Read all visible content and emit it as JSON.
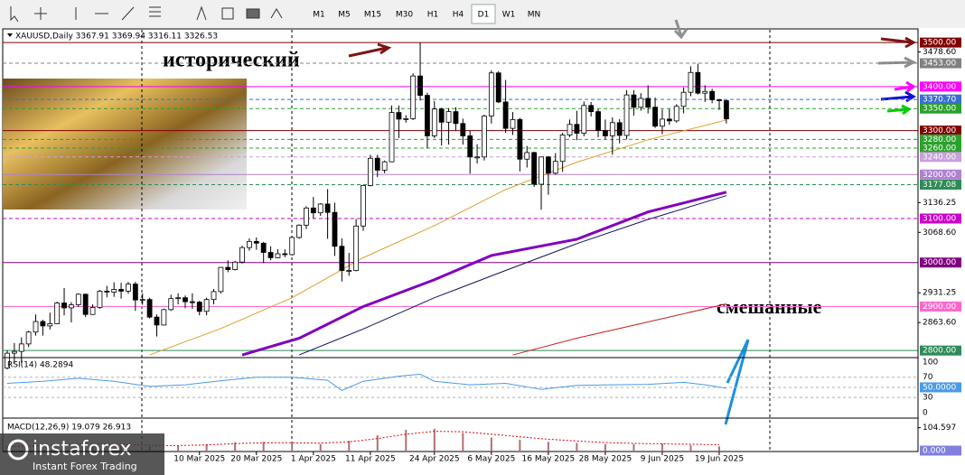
{
  "toolbar": {
    "timeframes": [
      "M1",
      "M5",
      "M15",
      "M30",
      "H1",
      "H4",
      "D1",
      "W1",
      "MN"
    ],
    "active_index": 6
  },
  "brand": {
    "name": "instaforex",
    "tagline": "Instant Forex Trading"
  },
  "chart_data": [
    {
      "type": "candlestick",
      "title": "XAUUSD,Daily  3367.91 3369.94 3316.11 3326.53",
      "categories": [
        null,
        null,
        null,
        null,
        null,
        null,
        null,
        null,
        null,
        null,
        null,
        null,
        null,
        null,
        null,
        null,
        null,
        null,
        null,
        null,
        null,
        null,
        null,
        null,
        null,
        null,
        null,
        "10 Mar 2025",
        null,
        null,
        null,
        null,
        null,
        null,
        null,
        "20 Mar 2025",
        null,
        null,
        null,
        null,
        null,
        null,
        null,
        "1 Apr 2025",
        null,
        null,
        null,
        null,
        null,
        null,
        null,
        "11 Apr 2025",
        null,
        null,
        null,
        null,
        null,
        null,
        null,
        null,
        "24 Apr 2025",
        null,
        null,
        null,
        null,
        null,
        null,
        null,
        "6 May 2025",
        null,
        null,
        null,
        null,
        null,
        null,
        null,
        "16 May 2025",
        null,
        null,
        null,
        null,
        null,
        null,
        null,
        "28 May 2025",
        null,
        null,
        null,
        null,
        null,
        null,
        null,
        "9 Jun 2025",
        null,
        null,
        null,
        null,
        null,
        null,
        null,
        "19 Jun 2025",
        null
      ],
      "ohlc": [
        [
          2760,
          2800,
          2757,
          2794
        ],
        [
          2794,
          2817,
          2772,
          2798
        ],
        [
          2798,
          2830,
          2772,
          2815
        ],
        [
          2815,
          2845,
          2808,
          2842
        ],
        [
          2842,
          2882,
          2834,
          2866
        ],
        [
          2866,
          2870,
          2834,
          2856
        ],
        [
          2856,
          2886,
          2848,
          2861
        ],
        [
          2861,
          2911,
          2860,
          2908
        ],
        [
          2908,
          2942,
          2880,
          2897
        ],
        [
          2897,
          2910,
          2864,
          2904
        ],
        [
          2904,
          2930,
          2899,
          2928
        ],
        [
          2928,
          2929,
          2876,
          2882
        ],
        [
          2882,
          2905,
          2881,
          2898
        ],
        [
          2898,
          2938,
          2895,
          2935
        ],
        [
          2935,
          2947,
          2921,
          2933
        ],
        [
          2933,
          2955,
          2922,
          2939
        ],
        [
          2939,
          2954,
          2918,
          2935
        ],
        [
          2935,
          2956,
          2929,
          2951
        ],
        [
          2951,
          2956,
          2890,
          2915
        ],
        [
          2915,
          2930,
          2904,
          2916
        ],
        [
          2916,
          2920,
          2873,
          2876
        ],
        [
          2876,
          2882,
          2832,
          2858
        ],
        [
          2858,
          2895,
          2857,
          2893
        ],
        [
          2893,
          2927,
          2890,
          2918
        ],
        [
          2918,
          2930,
          2905,
          2920
        ],
        [
          2920,
          2925,
          2896,
          2911
        ],
        [
          2911,
          2930,
          2895,
          2910
        ],
        [
          2910,
          2913,
          2880,
          2889
        ],
        [
          2889,
          2920,
          2880,
          2916
        ],
        [
          2916,
          2940,
          2905,
          2934
        ],
        [
          2934,
          2990,
          2930,
          2989
        ],
        [
          2989,
          3005,
          2978,
          2984
        ],
        [
          2984,
          3004,
          2982,
          3001
        ],
        [
          3001,
          3038,
          2998,
          3034
        ],
        [
          3034,
          3055,
          3027,
          3048
        ],
        [
          3048,
          3057,
          3029,
          3044
        ],
        [
          3044,
          3047,
          2999,
          3023
        ],
        [
          3023,
          3037,
          3005,
          3011
        ],
        [
          3011,
          3030,
          3010,
          3020
        ],
        [
          3020,
          3030,
          3012,
          3018
        ],
        [
          3018,
          3060,
          3016,
          3057
        ],
        [
          3057,
          3087,
          3054,
          3085
        ],
        [
          3085,
          3128,
          3076,
          3124
        ],
        [
          3124,
          3149,
          3100,
          3113
        ],
        [
          3113,
          3135,
          3106,
          3133
        ],
        [
          3133,
          3167,
          3054,
          3114
        ],
        [
          3114,
          3136,
          3015,
          3037
        ],
        [
          3037,
          3055,
          2957,
          2982
        ],
        [
          2982,
          3022,
          2970,
          2982
        ],
        [
          2982,
          3099,
          2980,
          3083
        ],
        [
          3083,
          3175,
          3072,
          3175
        ],
        [
          3175,
          3245,
          3173,
          3237
        ],
        [
          3237,
          3245,
          3194,
          3210
        ],
        [
          3210,
          3232,
          3203,
          3229
        ],
        [
          3229,
          3357,
          3228,
          3341
        ],
        [
          3341,
          3357,
          3283,
          3326
        ],
        [
          3326,
          3335,
          3318,
          3327
        ],
        [
          3327,
          3430,
          3324,
          3424
        ],
        [
          3424,
          3500,
          3368,
          3380
        ],
        [
          3380,
          3386,
          3260,
          3288
        ],
        [
          3288,
          3367,
          3283,
          3349
        ],
        [
          3349,
          3352,
          3266,
          3319
        ],
        [
          3319,
          3351,
          3268,
          3343
        ],
        [
          3343,
          3353,
          3300,
          3316
        ],
        [
          3316,
          3327,
          3268,
          3288
        ],
        [
          3288,
          3300,
          3202,
          3240
        ],
        [
          3240,
          3269,
          3225,
          3240
        ],
        [
          3240,
          3336,
          3232,
          3333
        ],
        [
          3333,
          3437,
          3316,
          3431
        ],
        [
          3431,
          3435,
          3363,
          3365
        ],
        [
          3365,
          3415,
          3295,
          3305
        ],
        [
          3305,
          3342,
          3290,
          3325
        ],
        [
          3325,
          3329,
          3207,
          3235
        ],
        [
          3235,
          3265,
          3216,
          3250
        ],
        [
          3250,
          3252,
          3172,
          3178
        ],
        [
          3178,
          3240,
          3120,
          3240
        ],
        [
          3240,
          3242,
          3154,
          3203
        ],
        [
          3203,
          3249,
          3200,
          3230
        ],
        [
          3230,
          3295,
          3206,
          3290
        ],
        [
          3290,
          3325,
          3285,
          3314
        ],
        [
          3314,
          3345,
          3278,
          3294
        ],
        [
          3294,
          3366,
          3287,
          3357
        ],
        [
          3357,
          3365,
          3332,
          3343
        ],
        [
          3343,
          3349,
          3285,
          3300
        ],
        [
          3300,
          3325,
          3280,
          3288
        ],
        [
          3288,
          3330,
          3245,
          3318
        ],
        [
          3318,
          3326,
          3271,
          3289
        ],
        [
          3289,
          3392,
          3280,
          3381
        ],
        [
          3381,
          3392,
          3334,
          3353
        ],
        [
          3353,
          3385,
          3345,
          3373
        ],
        [
          3373,
          3403,
          3339,
          3353
        ],
        [
          3353,
          3375,
          3306,
          3310
        ],
        [
          3310,
          3348,
          3292,
          3326
        ],
        [
          3326,
          3349,
          3313,
          3322
        ],
        [
          3322,
          3360,
          3318,
          3355
        ],
        [
          3355,
          3398,
          3339,
          3387
        ],
        [
          3387,
          3446,
          3378,
          3432
        ],
        [
          3432,
          3452,
          3382,
          3385
        ],
        [
          3385,
          3403,
          3365,
          3389
        ],
        [
          3389,
          3395,
          3362,
          3370
        ],
        [
          3370,
          3371,
          3347,
          3368
        ],
        [
          3367.91,
          3369.94,
          3316.11,
          3326.53
        ]
      ],
      "bull_color": "#ffffff",
      "bear_color": "#000000",
      "ylim": [
        2786,
        3529
      ],
      "yticks": [
        {
          "value": 3478.6,
          "label": "3478.60"
        },
        3136.25,
        {
          "value": 3068.6,
          "label": "3068.60"
        },
        2931.25,
        {
          "value": 2863.6,
          "label": "2863.60"
        }
      ],
      "levels": [
        {
          "value": 3500,
          "label": "3500.00",
          "color": "#800000",
          "dash": false
        },
        {
          "value": 3453,
          "label": "3453.00",
          "color": "#808080",
          "dash": true
        },
        {
          "value": 3400,
          "label": "3400.00",
          "color": "#ff00ff",
          "dash": false
        },
        {
          "value": 3370.7,
          "label": "3370.70",
          "color": "#3a6ed0",
          "dash": true
        },
        {
          "value": 3350,
          "label": "3350.00",
          "color": "#2ca02c",
          "dash": true
        },
        {
          "value": 3300,
          "label": "3300.00",
          "color": "#800000",
          "dash": false
        },
        {
          "value": 3280,
          "label": "3280.00",
          "color": "#2ca02c",
          "dash": true
        },
        {
          "value": 3260,
          "label": "3260.00",
          "color": "#2ca02c",
          "dash": true
        },
        {
          "value": 3240,
          "label": "3240.00",
          "color": "#c8a0d8",
          "dash": true
        },
        {
          "value": 3200,
          "label": "3200.00",
          "color": "#b080d0",
          "dash": false
        },
        {
          "value": 3177.08,
          "label": "3177.08",
          "color": "#2e8b57",
          "dash": true
        },
        {
          "value": 3100,
          "label": "3100.00",
          "color": "#cc00cc",
          "dash": true
        },
        {
          "value": 3000,
          "label": "3000.00",
          "color": "#800080",
          "dash": false
        },
        {
          "value": 2900,
          "label": "2900.00",
          "color": "#ff66cc",
          "dash": false
        },
        {
          "value": 2800,
          "label": "2800.00",
          "color": "#2e8b57",
          "dash": false
        }
      ],
      "ma": [
        {
          "color": "#e0a030",
          "width": 1,
          "x": [
            20,
            30,
            40,
            50,
            60,
            70,
            80,
            90,
            101
          ],
          "values": [
            2790,
            2850,
            2920,
            3011,
            3084,
            3166,
            3228,
            3279,
            3324
          ]
        },
        {
          "color": "#8000c0",
          "width": 3,
          "x": [
            33,
            41,
            50,
            60,
            68,
            80,
            90,
            101
          ],
          "values": [
            2790,
            2828,
            2900,
            2961,
            3016,
            3053,
            3115,
            3160
          ]
        },
        {
          "color": "#101060",
          "width": 1,
          "x": [
            41,
            50,
            60,
            70,
            80,
            90,
            101
          ],
          "values": [
            2790,
            2849,
            2920,
            2982,
            3043,
            3098,
            3152
          ]
        },
        {
          "color": "#c02020",
          "width": 1,
          "x": [
            71,
            80,
            90,
            101
          ],
          "values": [
            2790,
            2828,
            2865,
            2906
          ]
        }
      ],
      "annotations": [
        {
          "text": "исторический",
          "color": "#7b1515"
        },
        {
          "text": "смешанные",
          "color": "#1e8fe0"
        }
      ]
    },
    {
      "type": "line",
      "title": "RSI(14) 48.2894",
      "color": "#4a9be8",
      "x": [
        0,
        5,
        10,
        15,
        20,
        25,
        30,
        35,
        40,
        45,
        47,
        50,
        55,
        58,
        60,
        65,
        70,
        75,
        80,
        85,
        90,
        95,
        98,
        101
      ],
      "values": [
        58,
        62,
        68,
        62,
        52,
        55,
        63,
        70,
        70,
        64,
        44,
        62,
        72,
        76,
        62,
        55,
        58,
        46,
        54,
        55,
        56,
        60,
        55,
        48.2894
      ],
      "ylim": [
        -9,
        107
      ],
      "yticks": [
        100,
        70,
        {
          "value": 50,
          "label": "50.0000"
        },
        30,
        0
      ]
    },
    {
      "type": "macd",
      "title": "MACD(12,26,9) 19.079 26.913",
      "color": "#b07070",
      "signal_color": "#e00000",
      "x": [
        0,
        4,
        8,
        12,
        16,
        20,
        24,
        28,
        32,
        36,
        40,
        44,
        48,
        52,
        56,
        60,
        64,
        68,
        72,
        76,
        80,
        84,
        88,
        92,
        96,
        100
      ],
      "values": [
        20,
        25,
        30,
        32,
        25,
        18,
        22,
        30,
        38,
        40,
        35,
        30,
        45,
        70,
        95,
        100,
        80,
        60,
        50,
        40,
        35,
        30,
        30,
        32,
        25,
        19.079
      ],
      "signal": [
        18,
        22,
        27,
        30,
        28,
        24,
        23,
        26,
        32,
        36,
        36,
        34,
        40,
        55,
        75,
        88,
        86,
        75,
        63,
        52,
        44,
        37,
        33,
        31,
        29,
        26.913
      ],
      "ylim": [
        0,
        136
      ],
      "yticks": [
        104.597,
        {
          "value": 0,
          "label": "0.000"
        }
      ]
    }
  ]
}
